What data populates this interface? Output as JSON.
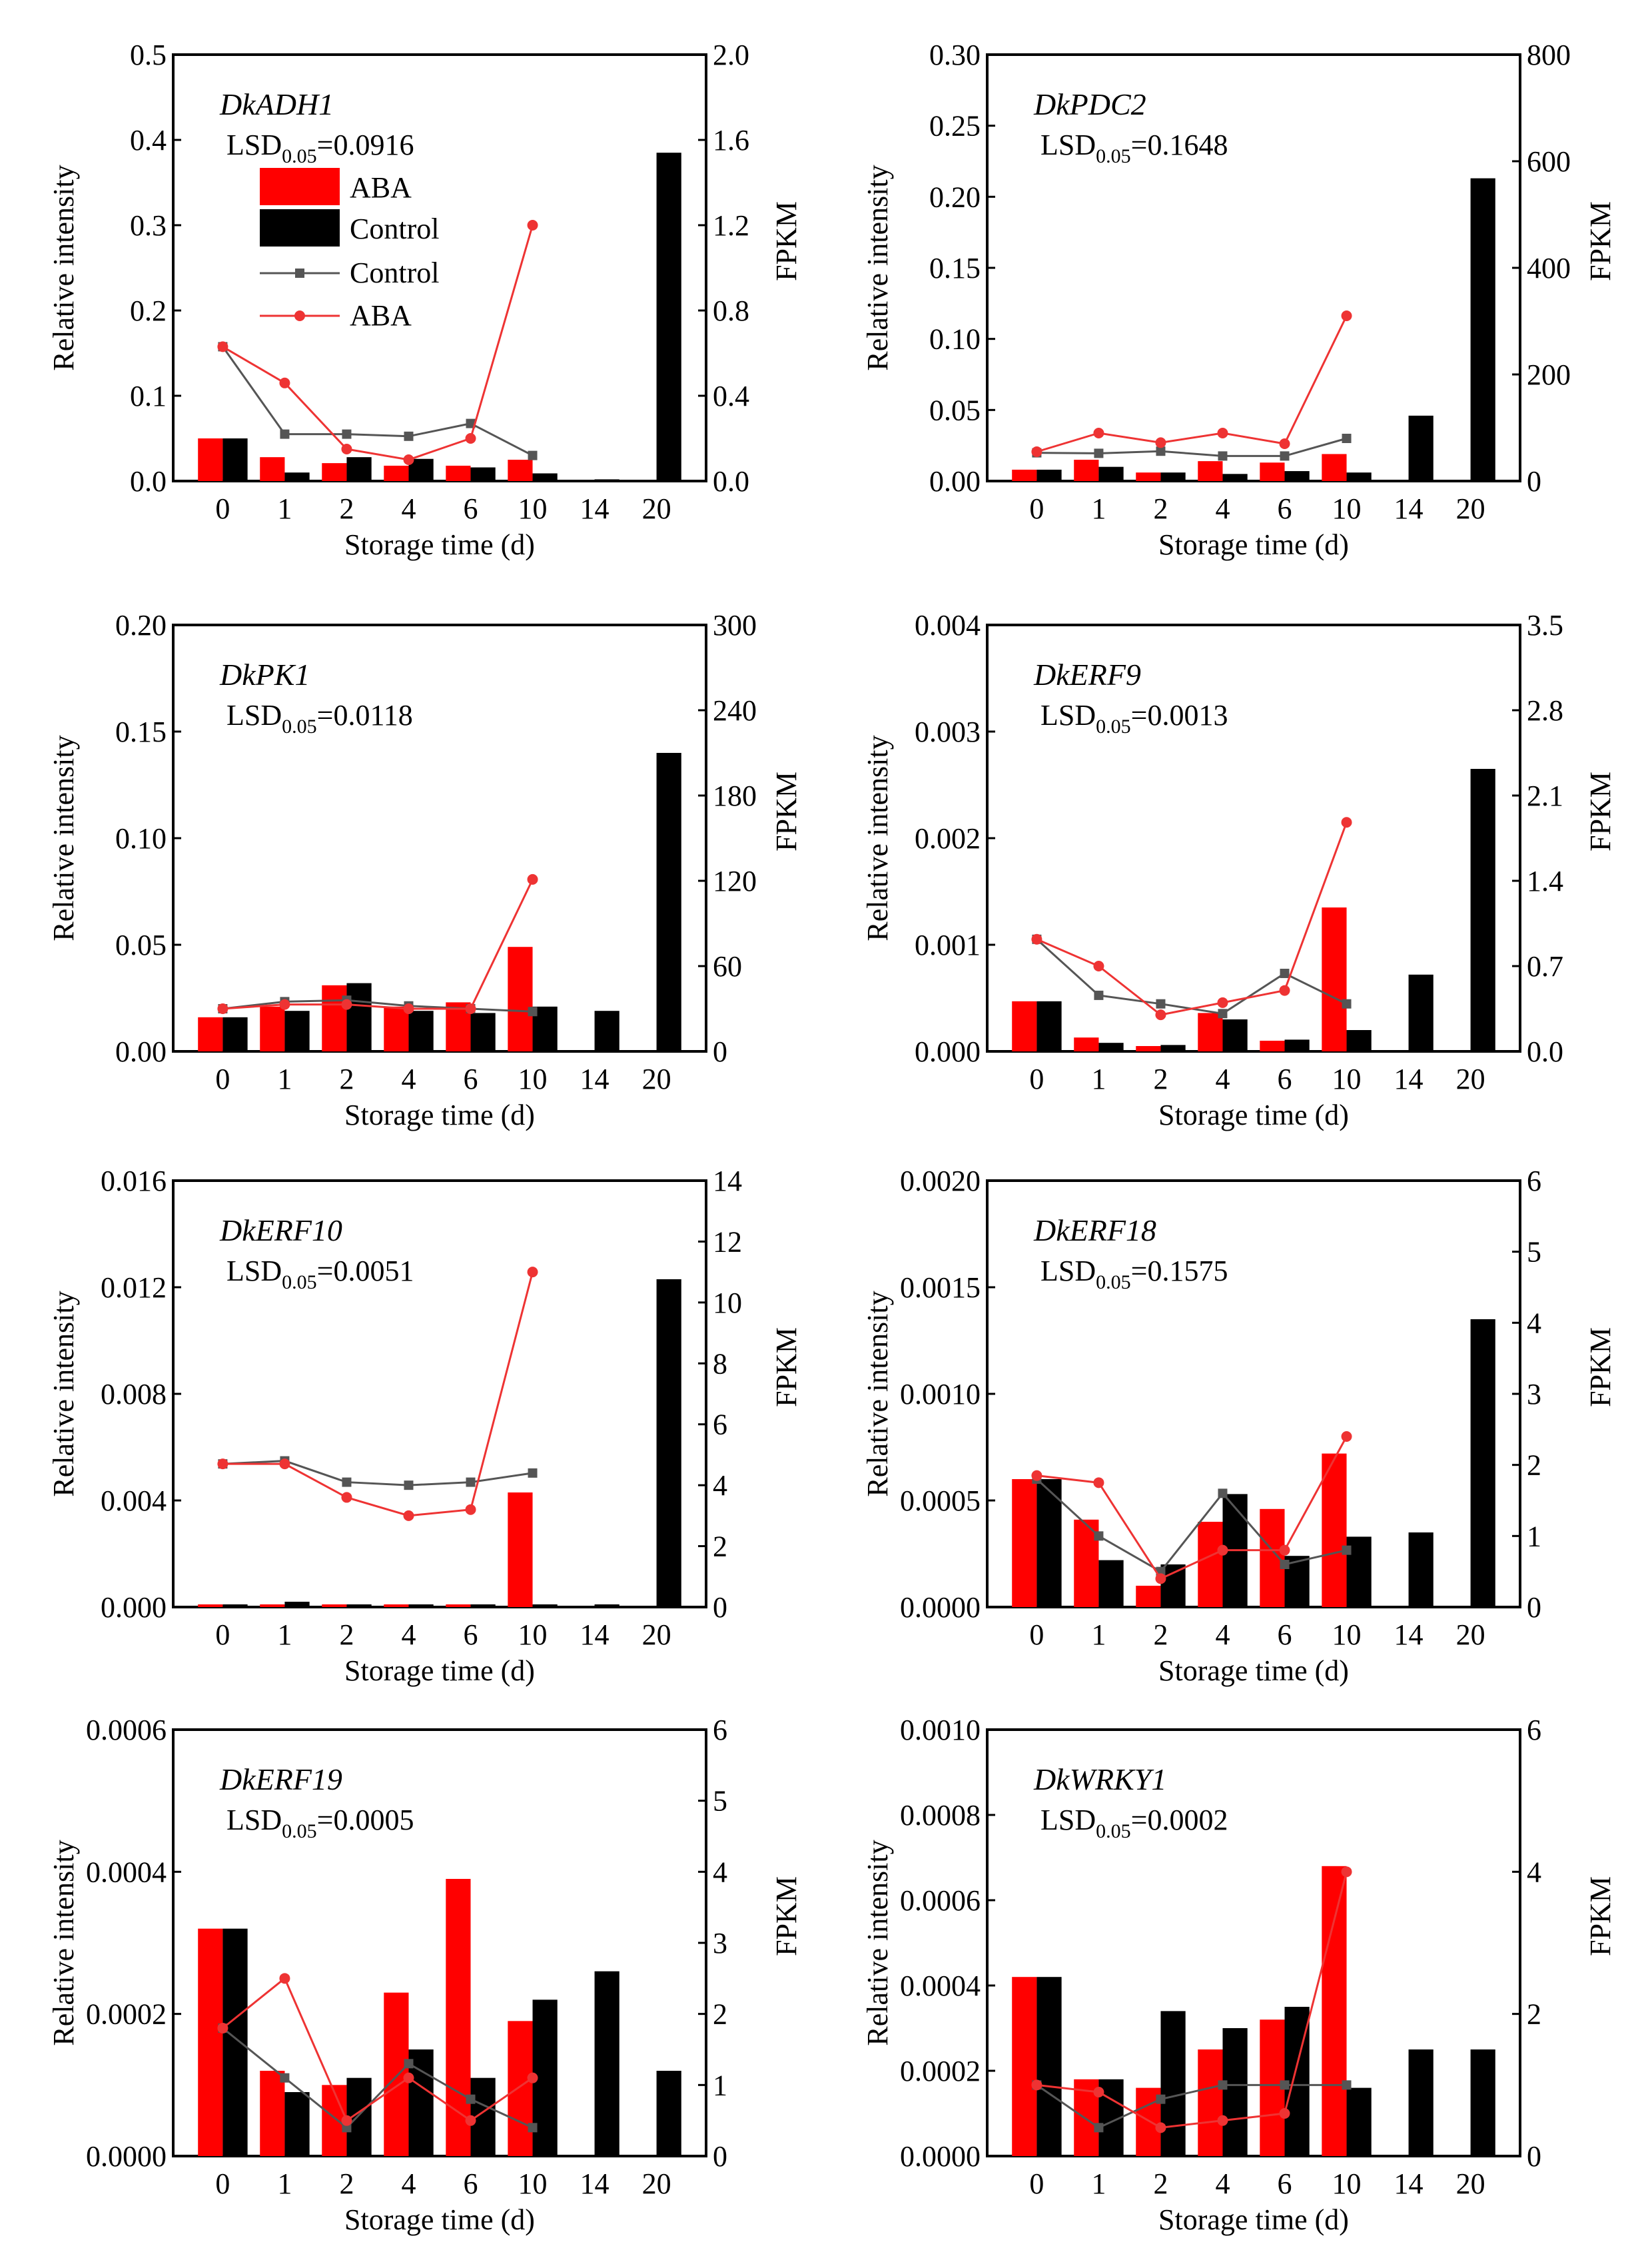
{
  "chart_data": [
    {
      "type": "bar+line",
      "gene": "DkADH1",
      "lsd_label": "LSD",
      "lsd_sub": "0.05",
      "lsd_value": "=0.0916",
      "categories": [
        "0",
        "1",
        "2",
        "4",
        "6",
        "10",
        "14",
        "20"
      ],
      "xlabel": "Storage time (d)",
      "ylabel": "Relative intensity",
      "y2label": "FPKM",
      "ylim": [
        0,
        0.5
      ],
      "yticks": [
        "0.0",
        "0.1",
        "0.2",
        "0.3",
        "0.4",
        "0.5"
      ],
      "y2lim": [
        0,
        2.0
      ],
      "y2ticks": [
        "0.0",
        "0.4",
        "0.8",
        "1.2",
        "1.6",
        "2.0"
      ],
      "bars": [
        {
          "name": "ABA",
          "values": [
            0.05,
            0.028,
            0.021,
            0.018,
            0.018,
            0.025,
            null,
            null
          ]
        },
        {
          "name": "Control",
          "values": [
            0.05,
            0.01,
            0.028,
            0.026,
            0.016,
            0.009,
            0.002,
            0.385
          ]
        }
      ],
      "lines": [
        {
          "name": "Control",
          "values": [
            0.63,
            0.22,
            0.22,
            0.21,
            0.27,
            0.12
          ]
        },
        {
          "name": "ABA",
          "values": [
            0.63,
            0.46,
            0.15,
            0.1,
            0.2,
            1.2
          ]
        }
      ],
      "legend": {
        "items": [
          "ABA",
          "Control",
          "Control",
          "ABA"
        ],
        "placement": "top-left"
      }
    },
    {
      "type": "bar+line",
      "gene": "DkPDC2",
      "lsd_label": "LSD",
      "lsd_sub": "0.05",
      "lsd_value": "=0.1648",
      "categories": [
        "0",
        "1",
        "2",
        "4",
        "6",
        "10",
        "14",
        "20"
      ],
      "xlabel": "Storage time (d)",
      "ylabel": "Relative intensity",
      "y2label": "FPKM",
      "ylim": [
        0,
        0.3
      ],
      "yticks": [
        "0.00",
        "0.05",
        "0.10",
        "0.15",
        "0.20",
        "0.25",
        "0.30"
      ],
      "y2lim": [
        0,
        800
      ],
      "y2ticks": [
        "0",
        "200",
        "400",
        "600",
        "800"
      ],
      "bars": [
        {
          "name": "ABA",
          "values": [
            0.008,
            0.015,
            0.006,
            0.014,
            0.013,
            0.019,
            null,
            null
          ]
        },
        {
          "name": "Control",
          "values": [
            0.008,
            0.01,
            0.006,
            0.005,
            0.007,
            0.006,
            0.046,
            0.213
          ]
        }
      ],
      "lines": [
        {
          "name": "Control",
          "values": [
            53,
            52,
            56,
            47,
            47,
            80
          ]
        },
        {
          "name": "ABA",
          "values": [
            55,
            90,
            72,
            90,
            70,
            310
          ]
        }
      ]
    },
    {
      "type": "bar+line",
      "gene": "DkPK1",
      "lsd_label": "LSD",
      "lsd_sub": "0.05",
      "lsd_value": "=0.0118",
      "categories": [
        "0",
        "1",
        "2",
        "4",
        "6",
        "10",
        "14",
        "20"
      ],
      "xlabel": "Storage time (d)",
      "ylabel": "Relative intensity",
      "y2label": "FPKM",
      "ylim": [
        0,
        0.2
      ],
      "yticks": [
        "0.00",
        "0.05",
        "0.10",
        "0.15",
        "0.20"
      ],
      "y2lim": [
        0,
        300
      ],
      "y2ticks": [
        "0",
        "60",
        "120",
        "180",
        "240",
        "300"
      ],
      "bars": [
        {
          "name": "ABA",
          "values": [
            0.016,
            0.021,
            0.031,
            0.021,
            0.023,
            0.049,
            null,
            null
          ]
        },
        {
          "name": "Control",
          "values": [
            0.016,
            0.019,
            0.032,
            0.019,
            0.018,
            0.021,
            0.019,
            0.14
          ]
        }
      ],
      "lines": [
        {
          "name": "Control",
          "values": [
            30,
            35,
            36,
            32,
            30,
            28
          ]
        },
        {
          "name": "ABA",
          "values": [
            30,
            33,
            33,
            30,
            30,
            121
          ]
        }
      ]
    },
    {
      "type": "bar+line",
      "gene": "DkERF9",
      "lsd_label": "LSD",
      "lsd_sub": "0.05",
      "lsd_value": "=0.0013",
      "categories": [
        "0",
        "1",
        "2",
        "4",
        "6",
        "10",
        "14",
        "20"
      ],
      "xlabel": "Storage time (d)",
      "ylabel": "Relative intensity",
      "y2label": "FPKM",
      "ylim": [
        0,
        0.004
      ],
      "yticks": [
        "0.000",
        "0.001",
        "0.002",
        "0.003",
        "0.004"
      ],
      "y2lim": [
        0,
        3.5
      ],
      "y2ticks": [
        "0.0",
        "0.7",
        "1.4",
        "2.1",
        "2.8",
        "3.5"
      ],
      "bars": [
        {
          "name": "ABA",
          "values": [
            0.00047,
            0.00013,
            5e-05,
            0.00036,
            0.0001,
            0.00135,
            null,
            null
          ]
        },
        {
          "name": "Control",
          "values": [
            0.00047,
            8e-05,
            6e-05,
            0.0003,
            0.00011,
            0.0002,
            0.00072,
            0.00265
          ]
        }
      ],
      "lines": [
        {
          "name": "Control",
          "values": [
            0.92,
            0.46,
            0.39,
            0.31,
            0.64,
            0.39
          ]
        },
        {
          "name": "ABA",
          "values": [
            0.92,
            0.7,
            0.3,
            0.4,
            0.5,
            1.88
          ]
        }
      ]
    },
    {
      "type": "bar+line",
      "gene": "DkERF10",
      "lsd_label": "LSD",
      "lsd_sub": "0.05",
      "lsd_value": "=0.0051",
      "categories": [
        "0",
        "1",
        "2",
        "4",
        "6",
        "10",
        "14",
        "20"
      ],
      "xlabel": "Storage time (d)",
      "ylabel": "Relative intensity",
      "y2label": "FPKM",
      "ylim": [
        0,
        0.016
      ],
      "yticks": [
        "0.000",
        "0.004",
        "0.008",
        "0.012",
        "0.016"
      ],
      "y2lim": [
        0,
        14
      ],
      "y2ticks": [
        "0",
        "2",
        "4",
        "6",
        "8",
        "10",
        "12",
        "14"
      ],
      "bars": [
        {
          "name": "ABA",
          "values": [
            0.0001,
            0.0001,
            0.0001,
            0.0001,
            0.0001,
            0.0043,
            null,
            null
          ]
        },
        {
          "name": "Control",
          "values": [
            0.0001,
            0.0002,
            0.0001,
            0.0001,
            0.0001,
            0.0001,
            0.0001,
            0.0123
          ]
        }
      ],
      "lines": [
        {
          "name": "Control",
          "values": [
            4.7,
            4.8,
            4.1,
            4.0,
            4.1,
            4.4
          ]
        },
        {
          "name": "ABA",
          "values": [
            4.7,
            4.7,
            3.6,
            3.0,
            3.2,
            11.0
          ]
        }
      ]
    },
    {
      "type": "bar+line",
      "gene": "DkERF18",
      "lsd_label": "LSD",
      "lsd_sub": "0.05",
      "lsd_value": "=0.1575",
      "categories": [
        "0",
        "1",
        "2",
        "4",
        "6",
        "10",
        "14",
        "20"
      ],
      "xlabel": "Storage time (d)",
      "ylabel": "Relative intensity",
      "y2label": "FPKM",
      "ylim": [
        0,
        0.002
      ],
      "yticks": [
        "0.0000",
        "0.0005",
        "0.0010",
        "0.0015",
        "0.0020"
      ],
      "y2lim": [
        0,
        6
      ],
      "y2ticks": [
        "0",
        "1",
        "2",
        "3",
        "4",
        "5",
        "6"
      ],
      "bars": [
        {
          "name": "ABA",
          "values": [
            0.0006,
            0.00041,
            0.0001,
            0.0004,
            0.00046,
            0.00072,
            null,
            null
          ]
        },
        {
          "name": "Control",
          "values": [
            0.0006,
            0.00022,
            0.0002,
            0.00053,
            0.00024,
            0.00033,
            0.00035,
            0.00135
          ]
        }
      ],
      "lines": [
        {
          "name": "Control",
          "values": [
            1.8,
            1.0,
            0.5,
            1.6,
            0.6,
            0.8
          ]
        },
        {
          "name": "ABA",
          "values": [
            1.85,
            1.75,
            0.4,
            0.8,
            0.8,
            2.4
          ]
        }
      ]
    },
    {
      "type": "bar+line",
      "gene": "DkERF19",
      "lsd_label": "LSD",
      "lsd_sub": "0.05",
      "lsd_value": "=0.0005",
      "categories": [
        "0",
        "1",
        "2",
        "4",
        "6",
        "10",
        "14",
        "20"
      ],
      "xlabel": "Storage time (d)",
      "ylabel": "Relative intensity",
      "y2label": "FPKM",
      "ylim": [
        0,
        0.0006
      ],
      "yticks": [
        "0.0000",
        "0.0002",
        "0.0004",
        "0.0006"
      ],
      "y2lim": [
        0,
        6
      ],
      "y2ticks": [
        "0",
        "1",
        "2",
        "3",
        "4",
        "5",
        "6"
      ],
      "bars": [
        {
          "name": "ABA",
          "values": [
            0.00032,
            0.00012,
            0.0001,
            0.00023,
            0.00039,
            0.00019,
            null,
            null
          ]
        },
        {
          "name": "Control",
          "values": [
            0.00032,
            9e-05,
            0.00011,
            0.00015,
            0.00011,
            0.00022,
            0.00026,
            0.00012
          ]
        }
      ],
      "lines": [
        {
          "name": "Control",
          "values": [
            1.8,
            1.1,
            0.4,
            1.3,
            0.8,
            0.4
          ]
        },
        {
          "name": "ABA",
          "values": [
            1.8,
            2.5,
            0.5,
            1.1,
            0.5,
            1.1
          ]
        }
      ]
    },
    {
      "type": "bar+line",
      "gene": "DkWRKY1",
      "lsd_label": "LSD",
      "lsd_sub": "0.05",
      "lsd_value": "=0.0002",
      "categories": [
        "0",
        "1",
        "2",
        "4",
        "6",
        "10",
        "14",
        "20"
      ],
      "xlabel": "Storage time (d)",
      "ylabel": "Relative intensity",
      "y2label": "FPKM",
      "ylim": [
        0,
        0.001
      ],
      "yticks": [
        "0.0000",
        "0.0002",
        "0.0004",
        "0.0006",
        "0.0008",
        "0.0010"
      ],
      "y2lim": [
        0,
        6
      ],
      "y2ticks": [
        "0",
        "2",
        "4",
        "6"
      ],
      "bars": [
        {
          "name": "ABA",
          "values": [
            0.00042,
            0.00018,
            0.00016,
            0.00025,
            0.00032,
            0.00068,
            null,
            null
          ]
        },
        {
          "name": "Control",
          "values": [
            0.00042,
            0.00018,
            0.00034,
            0.0003,
            0.00035,
            0.00016,
            0.00025,
            0.00025
          ]
        }
      ],
      "lines": [
        {
          "name": "Control",
          "values": [
            1.0,
            0.4,
            0.8,
            1.0,
            1.0,
            1.0
          ]
        },
        {
          "name": "ABA",
          "values": [
            1.0,
            0.9,
            0.4,
            0.5,
            0.6,
            4.0
          ]
        }
      ]
    }
  ],
  "colors": {
    "aba": "#ff0000",
    "control_bar": "#000000",
    "control_line": "#555555",
    "aba_line": "#ee3333"
  }
}
